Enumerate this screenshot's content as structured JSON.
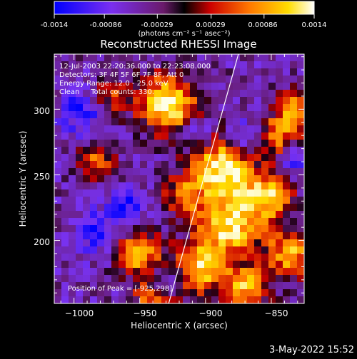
{
  "colorbar": {
    "tick_labels": [
      "-0.0014",
      "-0.00086",
      "-0.00029",
      "0.00029",
      "0.00086",
      "0.0014"
    ],
    "tick_values": [
      -0.0014,
      -0.00086,
      -0.00029,
      0.00029,
      0.00086,
      0.0014
    ],
    "range": [
      -0.0014,
      0.0014
    ],
    "unit_label": "(photons cm⁻² s⁻¹ asec⁻²)",
    "colors": [
      "#0000ff",
      "#7a2ff0",
      "#6a1a6a",
      "#000000",
      "#cc0000",
      "#ff7700",
      "#ffdd00",
      "#ffffff"
    ]
  },
  "title": "Reconstructed RHESSI Image",
  "info": {
    "line1": "12-Jul-2003 22:20:36.000 to 22:23:08.000",
    "line2": "Detectors: 3F 4F 5F 6F 7F 8F, Att 0",
    "line3": "Energy Range: 12.0 - 25.0 keV",
    "line4": "Clean     Total counts: 330."
  },
  "peak_label": "Position of Peak = [-925,298]",
  "axes": {
    "xlabel": "Heliocentric X (arcsec)",
    "ylabel": "Heliocentric Y (arcsec)",
    "xlim": [
      -1015,
      -825
    ],
    "ylim": [
      152,
      342
    ],
    "x_ticks": [
      -1000,
      -950,
      -900,
      -850
    ],
    "x_tick_labels": [
      "−1000",
      "−950",
      "−900",
      "−850"
    ],
    "y_ticks": [
      200,
      250,
      300
    ],
    "y_tick_labels": [
      "200",
      "250",
      "300"
    ]
  },
  "limb_line": {
    "points": [
      [
        -928,
        152
      ],
      [
        -875,
        342
      ]
    ]
  },
  "timestamp": "3-May-2022 15:52"
}
